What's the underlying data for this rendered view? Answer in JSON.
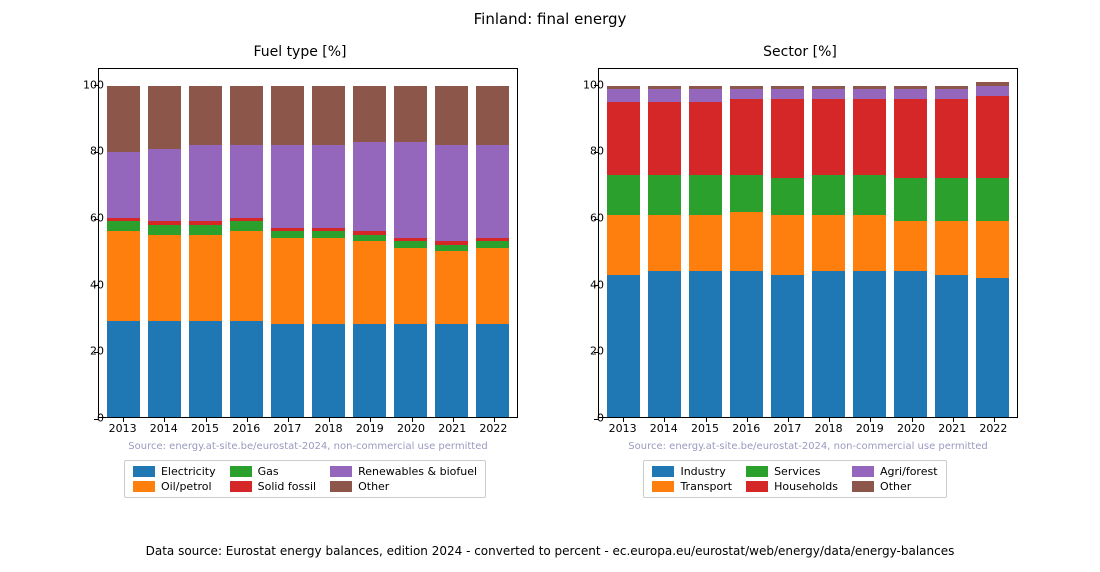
{
  "suptitle": "Finland: final energy",
  "watermark_text": "Source: energy.at-site.be/eurostat-2024, non-commercial use permitted",
  "watermark_color": "#9a9ac0",
  "footer": "Data source: Eurostat energy balances, edition 2024 - converted to percent - ec.europa.eu/eurostat/web/energy/data/energy-balances",
  "years": [
    "2013",
    "2014",
    "2015",
    "2016",
    "2017",
    "2018",
    "2019",
    "2020",
    "2021",
    "2022"
  ],
  "ylim": [
    0,
    105
  ],
  "yticks": [
    0,
    20,
    40,
    60,
    80,
    100
  ],
  "bar_gap_ratio": 0.2,
  "background_color": "#ffffff",
  "border_color": "#000000",
  "label_fontsize": 11,
  "title_fontsize": 14,
  "suptitle_fontsize": 15,
  "panels": [
    {
      "title": "Fuel type [%]",
      "series": [
        {
          "name": "Electricity",
          "color": "#1f77b4"
        },
        {
          "name": "Oil/petrol",
          "color": "#ff7f0e"
        },
        {
          "name": "Gas",
          "color": "#2ca02c"
        },
        {
          "name": "Solid fossil",
          "color": "#d62728"
        },
        {
          "name": "Renewables & biofuel",
          "color": "#9467bd"
        },
        {
          "name": "Other",
          "color": "#8c564b"
        }
      ],
      "data": [
        [
          29,
          27,
          3,
          1,
          20,
          20
        ],
        [
          29,
          26,
          3,
          1,
          22,
          19
        ],
        [
          29,
          26,
          3,
          1,
          23,
          18
        ],
        [
          29,
          27,
          3,
          1,
          22,
          18
        ],
        [
          28,
          26,
          2,
          1,
          25,
          18
        ],
        [
          28,
          26,
          2,
          1,
          25,
          18
        ],
        [
          28,
          25,
          2,
          1,
          27,
          17
        ],
        [
          28,
          23,
          2,
          1,
          29,
          17
        ],
        [
          28,
          22,
          2,
          1,
          29,
          18
        ],
        [
          28,
          23,
          2,
          1,
          28,
          18
        ]
      ]
    },
    {
      "title": "Sector [%]",
      "series": [
        {
          "name": "Industry",
          "color": "#1f77b4"
        },
        {
          "name": "Transport",
          "color": "#ff7f0e"
        },
        {
          "name": "Services",
          "color": "#2ca02c"
        },
        {
          "name": "Households",
          "color": "#d62728"
        },
        {
          "name": "Agri/forest",
          "color": "#9467bd"
        },
        {
          "name": "Other",
          "color": "#8c564b"
        }
      ],
      "data": [
        [
          43,
          18,
          12,
          22,
          4,
          1
        ],
        [
          44,
          17,
          12,
          22,
          4,
          1
        ],
        [
          44,
          17,
          12,
          22,
          4,
          1
        ],
        [
          44,
          18,
          11,
          23,
          3,
          1
        ],
        [
          43,
          18,
          11,
          24,
          3,
          1
        ],
        [
          44,
          17,
          12,
          23,
          3,
          1
        ],
        [
          44,
          17,
          12,
          23,
          3,
          1
        ],
        [
          44,
          15,
          13,
          24,
          3,
          1
        ],
        [
          43,
          16,
          13,
          24,
          3,
          1
        ],
        [
          42,
          17,
          13,
          25,
          3,
          1
        ]
      ]
    }
  ]
}
